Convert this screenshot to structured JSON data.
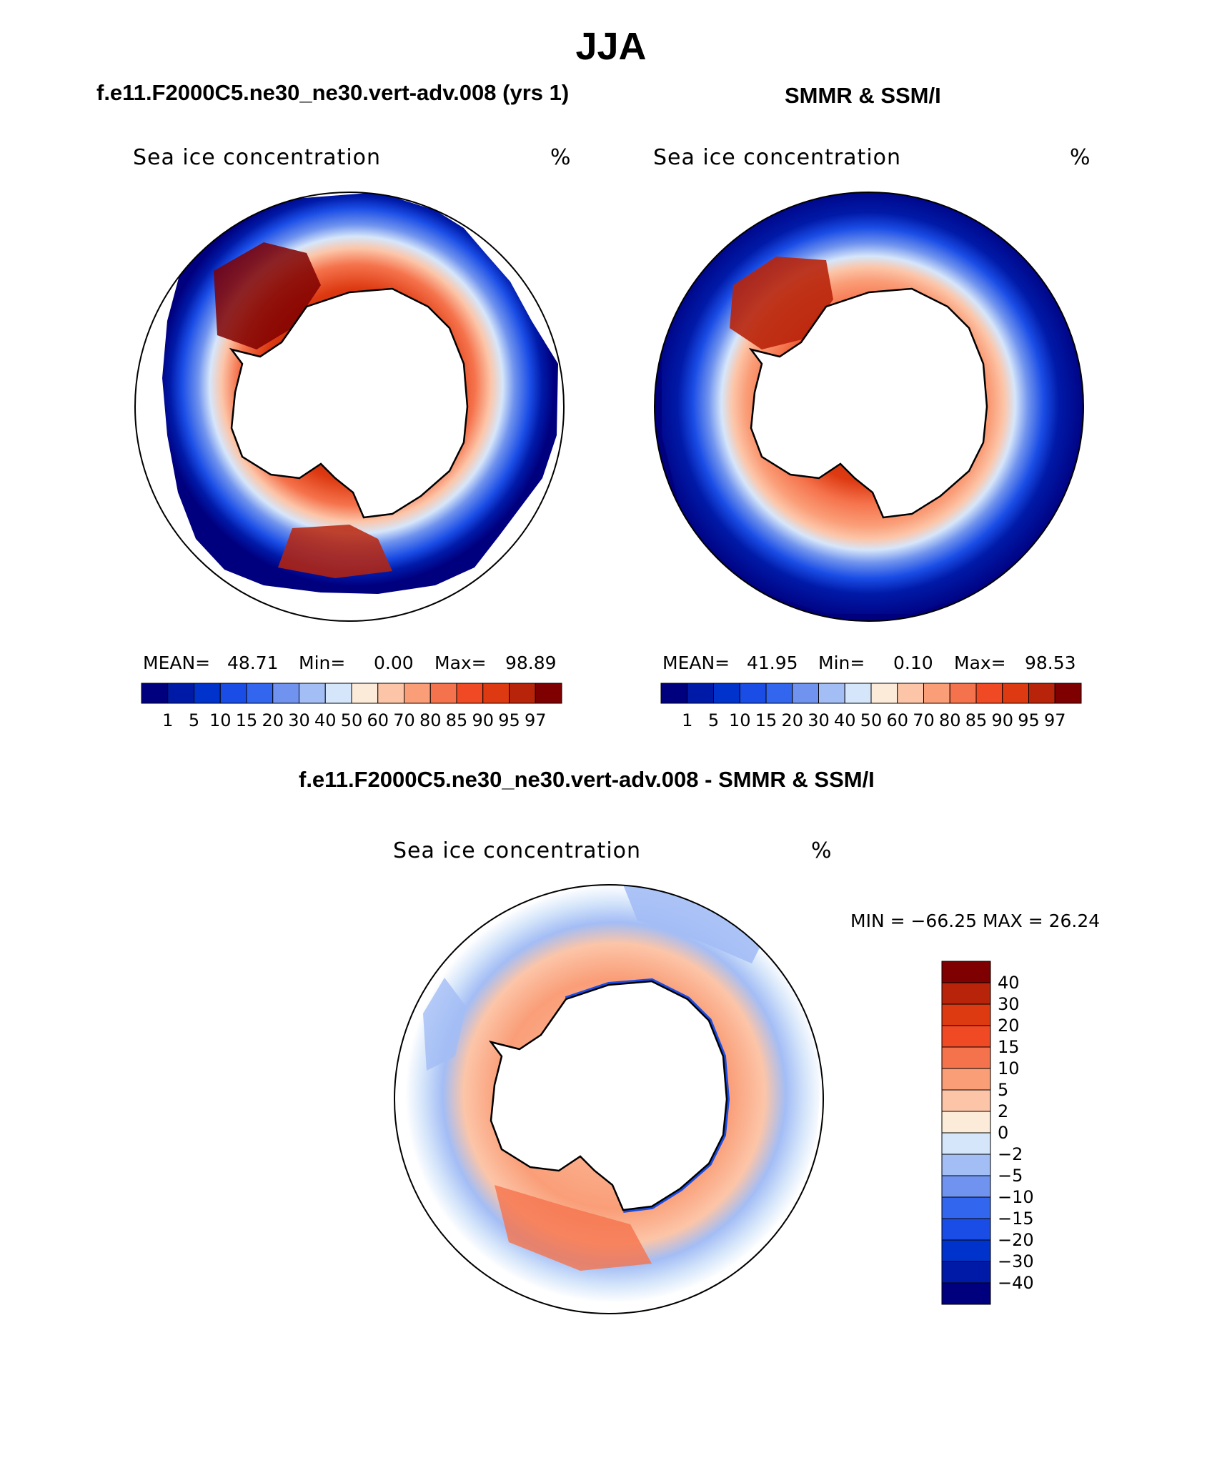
{
  "page": {
    "season_title": "JJA"
  },
  "panels": {
    "model": {
      "title": "f.e11.F2000C5.ne30_ne30.vert-adv.008 (yrs 1)",
      "variable": "Sea ice concentration",
      "units": "%",
      "stats": {
        "mean_label": "MEAN=",
        "mean": "48.71",
        "min_label": "Min=",
        "min": "0.00",
        "max_label": "Max=",
        "max": "98.89"
      }
    },
    "obs": {
      "title": "SMMR & SSM/I",
      "variable": "Sea ice concentration",
      "units": "%",
      "stats": {
        "mean_label": "MEAN=",
        "mean": "41.95",
        "min_label": "Min=",
        "min": "0.10",
        "max_label": "Max=",
        "max": "98.53"
      }
    },
    "diff": {
      "title": "f.e11.F2000C5.ne30_ne30.vert-adv.008 - SMMR & SSM/I",
      "variable": "Sea ice concentration",
      "units": "%",
      "minmax": "MIN = −66.25 MAX =   26.24"
    }
  },
  "colorbar_abs": {
    "levels": [
      "1",
      "5",
      "10",
      "15",
      "20",
      "30",
      "40",
      "50",
      "60",
      "70",
      "80",
      "85",
      "90",
      "95",
      "97"
    ],
    "colors": [
      "#00007f",
      "#001aa8",
      "#0033cc",
      "#1a4de6",
      "#3366ee",
      "#6f93ee",
      "#a3bdf5",
      "#d6e6fa",
      "#fdebd9",
      "#fcc5a8",
      "#fa9e78",
      "#f5734c",
      "#f04a24",
      "#dd3a12",
      "#b8240a",
      "#7f0000"
    ]
  },
  "colorbar_diff": {
    "levels": [
      "40",
      "30",
      "20",
      "15",
      "10",
      "5",
      "2",
      "0",
      "−2",
      "−5",
      "−10",
      "−15",
      "−20",
      "−30",
      "−40"
    ],
    "colors": [
      "#7f0000",
      "#b8240a",
      "#dd3a12",
      "#f04a24",
      "#f5734c",
      "#fa9e78",
      "#fcc5a8",
      "#fdebd9",
      "#d6e6fa",
      "#a3bdf5",
      "#6f93ee",
      "#3366ee",
      "#1a4de6",
      "#0033cc",
      "#001aa8",
      "#00007f"
    ]
  }
}
